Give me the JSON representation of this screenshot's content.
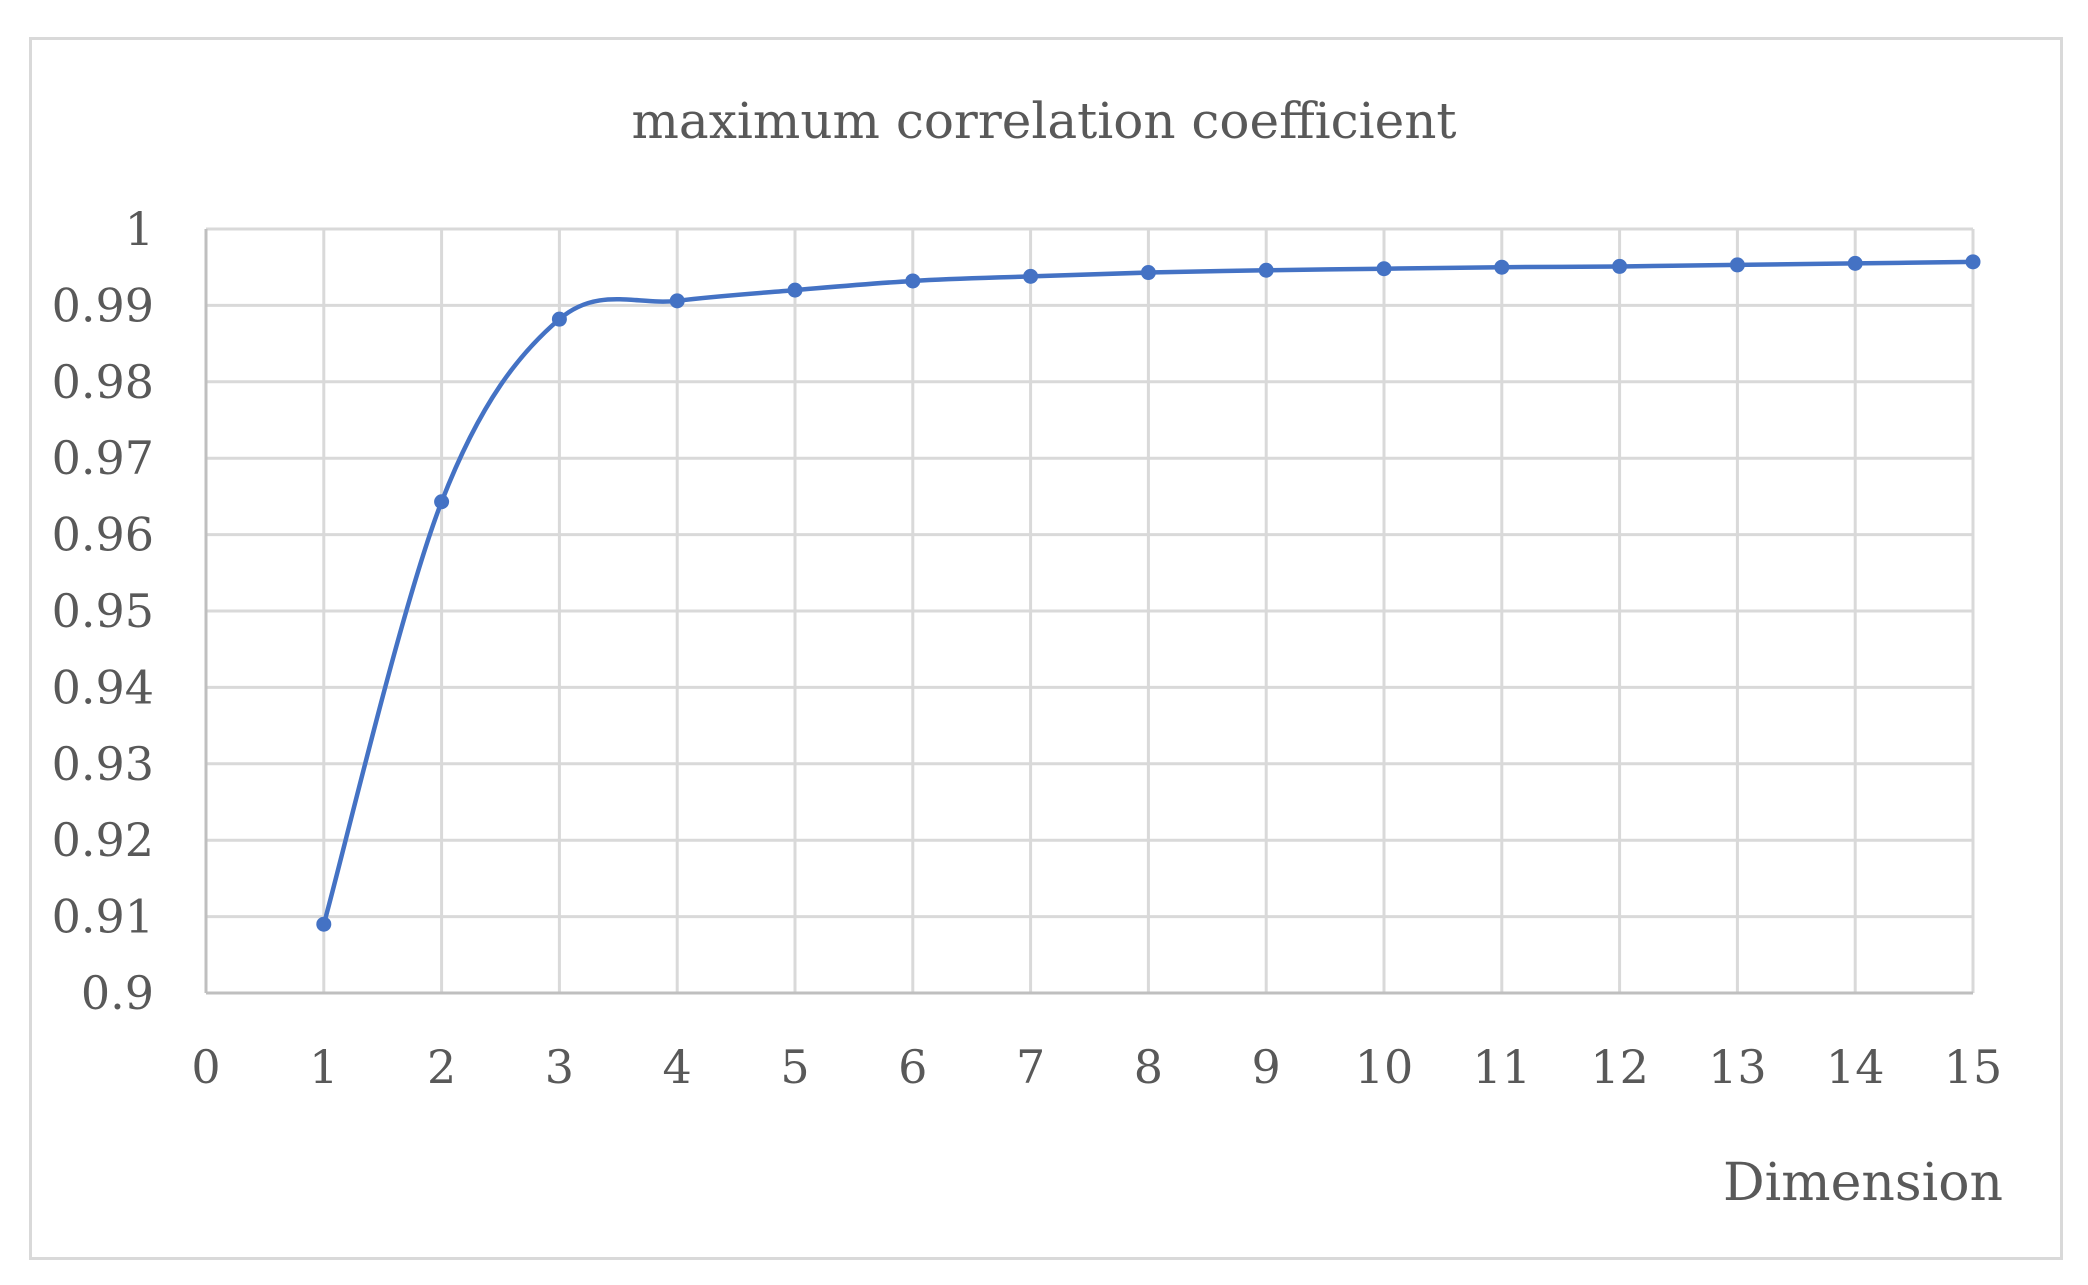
{
  "chart_data": {
    "type": "line",
    "title": "maximum correlation coefficient",
    "xlabel": "Dimension",
    "ylabel": "",
    "xlim": [
      0,
      15
    ],
    "ylim": [
      0.9,
      1
    ],
    "x_ticks": [
      "0",
      "1",
      "2",
      "3",
      "4",
      "5",
      "6",
      "7",
      "8",
      "9",
      "10",
      "11",
      "12",
      "13",
      "14",
      "15"
    ],
    "y_ticks": [
      "0.9",
      "0.91",
      "0.92",
      "0.93",
      "0.94",
      "0.95",
      "0.96",
      "0.97",
      "0.98",
      "0.99",
      "1"
    ],
    "grid": true,
    "smooth": true,
    "series": [
      {
        "color": "#4472c4",
        "x": [
          1,
          2,
          3,
          4,
          5,
          6,
          7,
          8,
          9,
          10,
          11,
          12,
          13,
          14,
          15
        ],
        "y": [
          0.909,
          0.9643,
          0.9882,
          0.9906,
          0.992,
          0.9932,
          0.9938,
          0.9943,
          0.9946,
          0.9948,
          0.995,
          0.9951,
          0.9953,
          0.9955,
          0.9957
        ]
      }
    ]
  }
}
